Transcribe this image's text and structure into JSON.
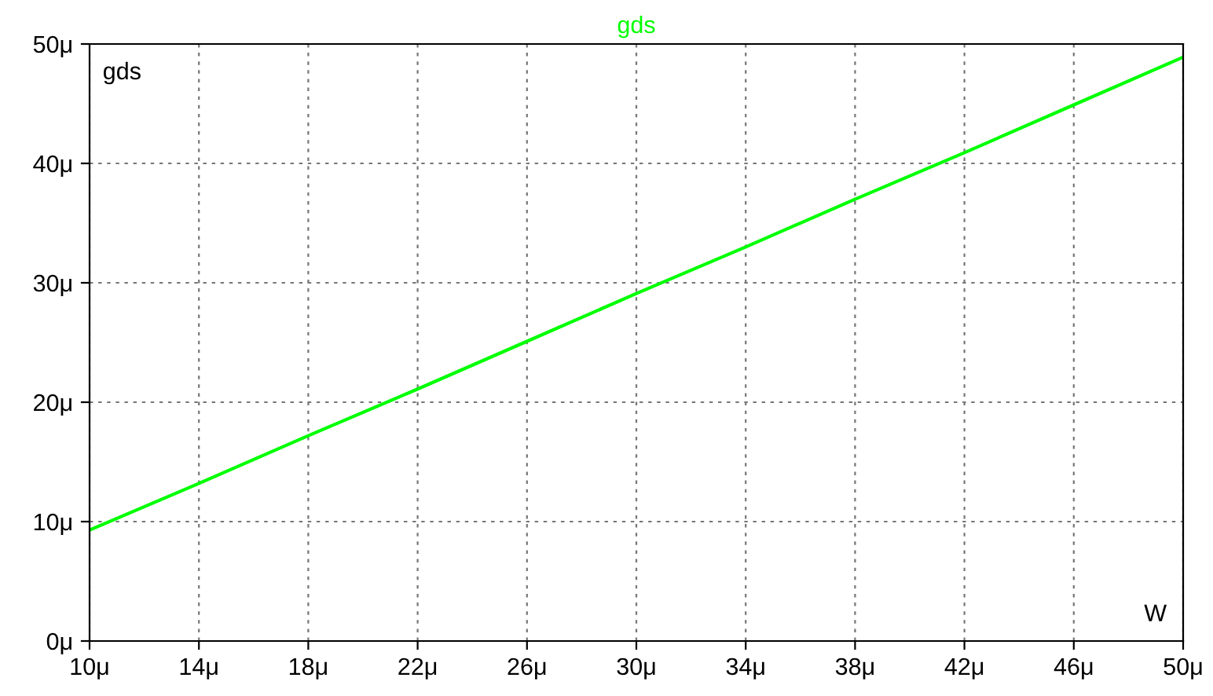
{
  "chart_data": {
    "type": "line",
    "xlabel": "W",
    "ylabel": "gds",
    "x": [
      10,
      14,
      18,
      22,
      26,
      30,
      34,
      38,
      42,
      46,
      50
    ],
    "series": [
      {
        "name": "gds",
        "color": "#00ff00",
        "values": [
          9.3,
          13.2,
          17.2,
          21.1,
          25.1,
          29.1,
          33.0,
          37.0,
          40.9,
          44.9,
          48.9
        ]
      }
    ],
    "xlim": [
      10,
      50
    ],
    "ylim": [
      0,
      50
    ],
    "xticks": [
      {
        "value": 10,
        "label": "10μ"
      },
      {
        "value": 14,
        "label": "14μ"
      },
      {
        "value": 18,
        "label": "18μ"
      },
      {
        "value": 22,
        "label": "22μ"
      },
      {
        "value": 26,
        "label": "26μ"
      },
      {
        "value": 30,
        "label": "30μ"
      },
      {
        "value": 34,
        "label": "34μ"
      },
      {
        "value": 38,
        "label": "38μ"
      },
      {
        "value": 42,
        "label": "42μ"
      },
      {
        "value": 46,
        "label": "46μ"
      },
      {
        "value": 50,
        "label": "50μ"
      }
    ],
    "yticks": [
      {
        "value": 0,
        "label": "0μ"
      },
      {
        "value": 10,
        "label": "10μ"
      },
      {
        "value": 20,
        "label": "20μ"
      },
      {
        "value": 30,
        "label": "30μ"
      },
      {
        "value": 40,
        "label": "40μ"
      },
      {
        "value": 50,
        "label": "50μ"
      }
    ],
    "grid": true,
    "line_style": "solid",
    "marker": "none"
  }
}
